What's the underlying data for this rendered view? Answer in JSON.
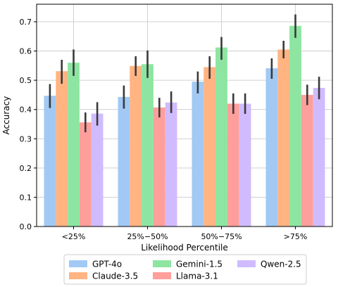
{
  "chart_data": {
    "type": "bar",
    "xlabel": "Likelihood Percentile",
    "ylabel": "Accuracy",
    "ylim": [
      0,
      0.76
    ],
    "yticks": [
      0.0,
      0.1,
      0.2,
      0.3,
      0.4,
      0.5,
      0.6,
      0.7
    ],
    "ytick_labels": [
      "0.0",
      "0.1",
      "0.2",
      "0.3",
      "0.4",
      "0.5",
      "0.6",
      "0.7"
    ],
    "grid": true,
    "legend_position": "bottom-center",
    "categories": [
      "<25%",
      "25%−50%",
      "50%−75%",
      ">75%"
    ],
    "series": [
      {
        "name": "GPT-4o",
        "color": "#a1c9f4",
        "values": [
          0.447,
          0.443,
          0.495,
          0.541
        ],
        "err_low": [
          0.405,
          0.403,
          0.455,
          0.505
        ],
        "err_high": [
          0.487,
          0.482,
          0.53,
          0.575
        ]
      },
      {
        "name": "Claude-3.5",
        "color": "#ffb482",
        "values": [
          0.531,
          0.549,
          0.545,
          0.605
        ],
        "err_low": [
          0.488,
          0.515,
          0.505,
          0.575
        ],
        "err_high": [
          0.57,
          0.582,
          0.582,
          0.635
        ]
      },
      {
        "name": "Gemini-1.5",
        "color": "#8de5a1",
        "values": [
          0.56,
          0.555,
          0.612,
          0.686
        ],
        "err_low": [
          0.515,
          0.508,
          0.57,
          0.645
        ],
        "err_high": [
          0.605,
          0.602,
          0.648,
          0.725
        ]
      },
      {
        "name": "Llama-3.1",
        "color": "#ff9f9b",
        "values": [
          0.356,
          0.407,
          0.42,
          0.45
        ],
        "err_low": [
          0.322,
          0.373,
          0.385,
          0.415
        ],
        "err_high": [
          0.39,
          0.44,
          0.455,
          0.485
        ]
      },
      {
        "name": "Qwen-2.5",
        "color": "#d0bbff",
        "values": [
          0.386,
          0.424,
          0.42,
          0.474
        ],
        "err_low": [
          0.345,
          0.388,
          0.385,
          0.435
        ],
        "err_high": [
          0.425,
          0.462,
          0.455,
          0.512
        ]
      }
    ]
  }
}
